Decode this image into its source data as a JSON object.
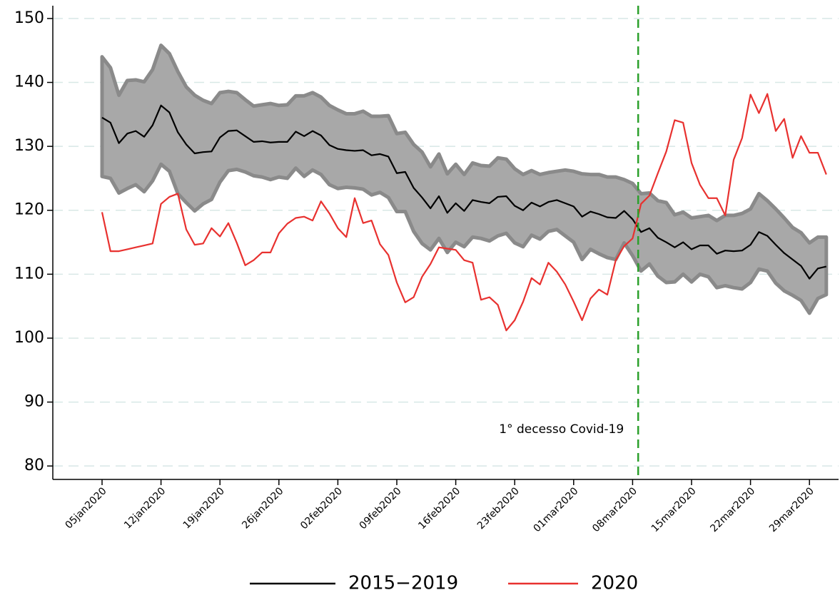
{
  "chart_data": {
    "type": "line",
    "x": [
      "05jan2020",
      "06jan2020",
      "07jan2020",
      "08jan2020",
      "09jan2020",
      "10jan2020",
      "11jan2020",
      "12jan2020",
      "13jan2020",
      "14jan2020",
      "15jan2020",
      "16jan2020",
      "17jan2020",
      "18jan2020",
      "19jan2020",
      "20jan2020",
      "21jan2020",
      "22jan2020",
      "23jan2020",
      "24jan2020",
      "25jan2020",
      "26jan2020",
      "27jan2020",
      "28jan2020",
      "29jan2020",
      "30jan2020",
      "31jan2020",
      "01feb2020",
      "02feb2020",
      "03feb2020",
      "04feb2020",
      "05feb2020",
      "06feb2020",
      "07feb2020",
      "08feb2020",
      "09feb2020",
      "10feb2020",
      "11feb2020",
      "12feb2020",
      "13feb2020",
      "14feb2020",
      "15feb2020",
      "16feb2020",
      "17feb2020",
      "18feb2020",
      "19feb2020",
      "20feb2020",
      "21feb2020",
      "22feb2020",
      "23feb2020",
      "24feb2020",
      "25feb2020",
      "26feb2020",
      "27feb2020",
      "28feb2020",
      "29feb2020",
      "01mar2020",
      "02mar2020",
      "03mar2020",
      "04mar2020",
      "05mar2020",
      "06mar2020",
      "07mar2020",
      "08mar2020",
      "09mar2020",
      "10mar2020",
      "11mar2020",
      "12mar2020",
      "13mar2020",
      "14mar2020",
      "15mar2020",
      "16mar2020",
      "17mar2020",
      "18mar2020",
      "19mar2020",
      "20mar2020",
      "21mar2020",
      "22mar2020",
      "23mar2020",
      "24mar2020",
      "25mar2020",
      "26mar2020",
      "27mar2020",
      "28mar2020",
      "29mar2020",
      "30mar2020",
      "31mar2020"
    ],
    "band": {
      "color": "#a8a8a8",
      "edge": "#8a8a8a",
      "upper": [
        144,
        142.3,
        138,
        140.3,
        140.4,
        140.1,
        142,
        145.8,
        144.5,
        141.7,
        139.3,
        138,
        137.2,
        136.7,
        138.4,
        138.6,
        138.4,
        137.3,
        136.3,
        136.5,
        136.7,
        136.4,
        136.5,
        137.9,
        137.9,
        138.4,
        137.7,
        136.4,
        135.7,
        135.1,
        135.1,
        135.5,
        134.7,
        134.7,
        134.8,
        132,
        132.2,
        130.3,
        129.1,
        126.8,
        128.8,
        125.7,
        127.2,
        125.6,
        127.4,
        127,
        126.9,
        128.2,
        128,
        126.5,
        125.6,
        126.2,
        125.6,
        125.9,
        126.1,
        126.3,
        126.1,
        125.7,
        125.6,
        125.6,
        125.2,
        125.2,
        124.8,
        124.2,
        122.6,
        122.7,
        121.5,
        121.2,
        119.3,
        119.7,
        118.8,
        119,
        119.2,
        118.4,
        119.2,
        119.2,
        119.5,
        120.2,
        122.6,
        121.5,
        120.2,
        118.8,
        117.3,
        116.5,
        114.9,
        115.8,
        115.8
      ],
      "lower": [
        125.3,
        125,
        122.7,
        123.4,
        124,
        122.9,
        124.6,
        127.2,
        126.1,
        122.6,
        121.2,
        119.9,
        121,
        121.7,
        124.4,
        126.2,
        126.4,
        126,
        125.4,
        125.2,
        124.8,
        125.2,
        125,
        126.6,
        125.3,
        126.3,
        125.6,
        124,
        123.4,
        123.6,
        123.5,
        123.3,
        122.4,
        122.8,
        122,
        119.8,
        119.8,
        116.7,
        114.8,
        113.8,
        115.6,
        113.4,
        115,
        114.3,
        115.8,
        115.6,
        115.2,
        116,
        116.4,
        114.9,
        114.3,
        116.1,
        115.5,
        116.7,
        117,
        116,
        115,
        112.3,
        113.9,
        113.2,
        112.6,
        112.3,
        114.9,
        112.9,
        110.5,
        111.6,
        109.7,
        108.7,
        108.8,
        110,
        108.8,
        110,
        109.6,
        107.9,
        108.2,
        107.9,
        107.7,
        108.7,
        110.8,
        110.5,
        108.6,
        107.4,
        106.7,
        105.9,
        103.9,
        106.2,
        106.8
      ]
    },
    "series": [
      {
        "name": "2015−2019",
        "color": "#000000",
        "values": [
          134.5,
          133.7,
          130.5,
          132,
          132.4,
          131.5,
          133.3,
          136.4,
          135.3,
          132.2,
          130.3,
          128.9,
          129.1,
          129.2,
          131.4,
          132.4,
          132.5,
          131.6,
          130.7,
          130.8,
          130.6,
          130.7,
          130.7,
          132.3,
          131.6,
          132.4,
          131.7,
          130.2,
          129.6,
          129.4,
          129.3,
          129.4,
          128.6,
          128.8,
          128.4,
          125.8,
          126,
          123.5,
          122,
          120.3,
          122.2,
          119.6,
          121.1,
          119.9,
          121.6,
          121.3,
          121.1,
          122.1,
          122.2,
          120.7,
          120,
          121.2,
          120.6,
          121.3,
          121.6,
          121.1,
          120.6,
          119,
          119.8,
          119.4,
          118.9,
          118.8,
          119.9,
          118.6,
          116.6,
          117.2,
          115.7,
          115,
          114.2,
          115,
          113.9,
          114.5,
          114.5,
          113.2,
          113.7,
          113.6,
          113.7,
          114.6,
          116.6,
          116,
          114.6,
          113.3,
          112.3,
          111.3,
          109.3,
          110.9,
          111.2
        ]
      },
      {
        "name": "2020",
        "color": "#e8312f",
        "values": [
          119.7,
          113.6,
          113.6,
          113.9,
          114.2,
          114.5,
          114.8,
          121,
          122.1,
          122.6,
          117,
          114.6,
          114.8,
          117.2,
          115.9,
          118,
          114.9,
          111.4,
          112.2,
          113.4,
          113.4,
          116.4,
          117.9,
          118.8,
          119,
          118.4,
          121.4,
          119.5,
          117.2,
          115.8,
          121.9,
          118,
          118.4,
          114.7,
          113,
          108.7,
          105.6,
          106.4,
          109.6,
          111.6,
          114.2,
          114,
          113.8,
          112.2,
          111.8,
          106,
          106.4,
          105.2,
          101.2,
          102.8,
          105.7,
          109.4,
          108.4,
          111.8,
          110.4,
          108.4,
          105.7,
          102.8,
          106.2,
          107.6,
          106.8,
          112.2,
          114.4,
          115.6,
          121,
          122.3,
          125.8,
          129.2,
          134.1,
          133.7,
          127.4,
          124,
          121.9,
          121.9,
          119.2,
          127.9,
          131.3,
          138.1,
          135.2,
          138.2,
          132.4,
          134.3,
          128.2,
          131.6,
          129,
          129,
          125.6
        ]
      }
    ],
    "xticks": [
      "05jan2020",
      "12jan2020",
      "19jan2020",
      "26jan2020",
      "02feb2020",
      "09feb2020",
      "16feb2020",
      "23feb2020",
      "01mar2020",
      "08mar2020",
      "15mar2020",
      "22mar2020",
      "29mar2020"
    ],
    "ylim": [
      77.9,
      152
    ],
    "yticks": [
      80,
      90,
      100,
      110,
      120,
      130,
      140,
      150
    ],
    "grid": true,
    "vline": {
      "x": "09mar2020",
      "color": "#2ca02c",
      "label": "1° decesso Covid-19"
    },
    "legend": "bottom"
  }
}
